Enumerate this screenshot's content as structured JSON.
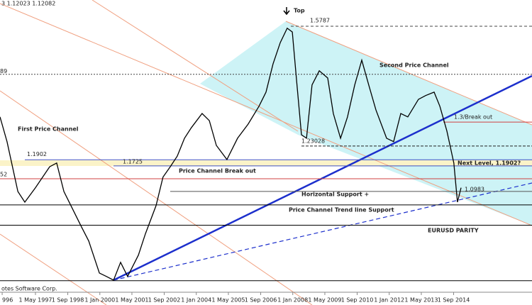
{
  "chart_data": {
    "type": "line",
    "header": "3 1.12023 1.12082",
    "footer": "otes Software Corp.",
    "color": "#000000",
    "x": [
      1995.86,
      1996.15,
      1996.6,
      1996.89,
      1997.33,
      1997.92,
      1998.21,
      1998.51,
      1998.8,
      1999.24,
      1999.54,
      1999.98,
      2000.27,
      2000.57,
      2000.86,
      2001.15,
      2001.6,
      2001.89,
      2002.33,
      2002.62,
      2002.92,
      2003.21,
      2003.51,
      2003.8,
      2004.24,
      2004.54,
      2004.83,
      2005.27,
      2005.71,
      2006.15,
      2006.6,
      2006.89,
      2007.18,
      2007.48,
      2007.77,
      2007.98,
      2008.15,
      2008.36,
      2008.57,
      2008.8,
      2009.1,
      2009.45,
      2009.68,
      2009.98,
      2010.27,
      2010.57,
      2010.86,
      2011.15,
      2011.45,
      2011.89,
      2012.18,
      2012.48,
      2012.77,
      2013.21,
      2013.51,
      2013.86,
      2014.1,
      2014.39,
      2014.68,
      2014.83,
      2014.98
    ],
    "values": [
      1.315,
      1.243,
      1.098,
      1.067,
      1.109,
      1.17,
      1.181,
      1.098,
      1.057,
      0.995,
      0.954,
      0.861,
      0.851,
      0.84,
      0.892,
      0.851,
      0.913,
      0.975,
      1.057,
      1.14,
      1.17,
      1.201,
      1.253,
      1.284,
      1.325,
      1.304,
      1.232,
      1.191,
      1.253,
      1.294,
      1.346,
      1.387,
      1.469,
      1.531,
      1.573,
      1.562,
      1.428,
      1.263,
      1.253,
      1.408,
      1.449,
      1.428,
      1.325,
      1.253,
      1.315,
      1.408,
      1.48,
      1.408,
      1.335,
      1.253,
      1.243,
      1.325,
      1.315,
      1.366,
      1.377,
      1.387,
      1.346,
      1.274,
      1.181,
      1.067,
      1.109
    ],
    "xlim": [
      1995.86,
      2017.92
    ],
    "ylim": [
      0.805,
      1.655
    ],
    "xticks": [
      {
        "value": 1995.95,
        "label": "996"
      },
      {
        "value": 1997.33,
        "label": "1 May 1997"
      },
      {
        "value": 1998.67,
        "label": "1 Sep 1998"
      },
      {
        "value": 2000.0,
        "label": "1 Jan 2000"
      },
      {
        "value": 2001.33,
        "label": "1 May 2001"
      },
      {
        "value": 2002.67,
        "label": "1 Sep 2002"
      },
      {
        "value": 2004.0,
        "label": "1 Jan 2004"
      },
      {
        "value": 2005.33,
        "label": "1 May 2005"
      },
      {
        "value": 2006.67,
        "label": "1 Sep 2006"
      },
      {
        "value": 2008.0,
        "label": "1 Jan 2008"
      },
      {
        "value": 2009.33,
        "label": "1 May 2009"
      },
      {
        "value": 2010.67,
        "label": "1 Sep 2010"
      },
      {
        "value": 2012.0,
        "label": "1 Jan 2012"
      },
      {
        "value": 2013.33,
        "label": "1 May 2013"
      },
      {
        "value": 2014.67,
        "label": "1 Sep 2014"
      }
    ],
    "levels": [
      {
        "value": 1.5787,
        "label": "1.5787",
        "color": "#444444"
      },
      {
        "value": 1.4389,
        "label": "89",
        "color": "#444444"
      },
      {
        "value": 1.3,
        "label": "1.3/Break out",
        "color": "#d04040"
      },
      {
        "value": 1.23028,
        "label": "1.23028",
        "color": "#222222"
      },
      {
        "value": 1.1902,
        "label": "1.1902",
        "color": "#4050c0"
      },
      {
        "value": 1.1725,
        "label": "1.1725",
        "color": "#4050c0"
      },
      {
        "value": 1.1352,
        "label": "52",
        "color": "#d04040"
      },
      {
        "value": 1.0983,
        "label": "1.0983",
        "color": "#555555"
      },
      {
        "value": 1.059,
        "color": "#000000"
      },
      {
        "value": 1.0,
        "color": "#000000"
      },
      {
        "value": 0.8385,
        "color": "#000000"
      }
    ],
    "annotations": [
      "Top",
      "Second Price Channel",
      "First Price Channel",
      "Price Channel Break out",
      "Next Level, 1.1902?",
      "Horizontal Support +",
      "Price Channel Trend line Support",
      "EURUSD PARITY"
    ]
  }
}
